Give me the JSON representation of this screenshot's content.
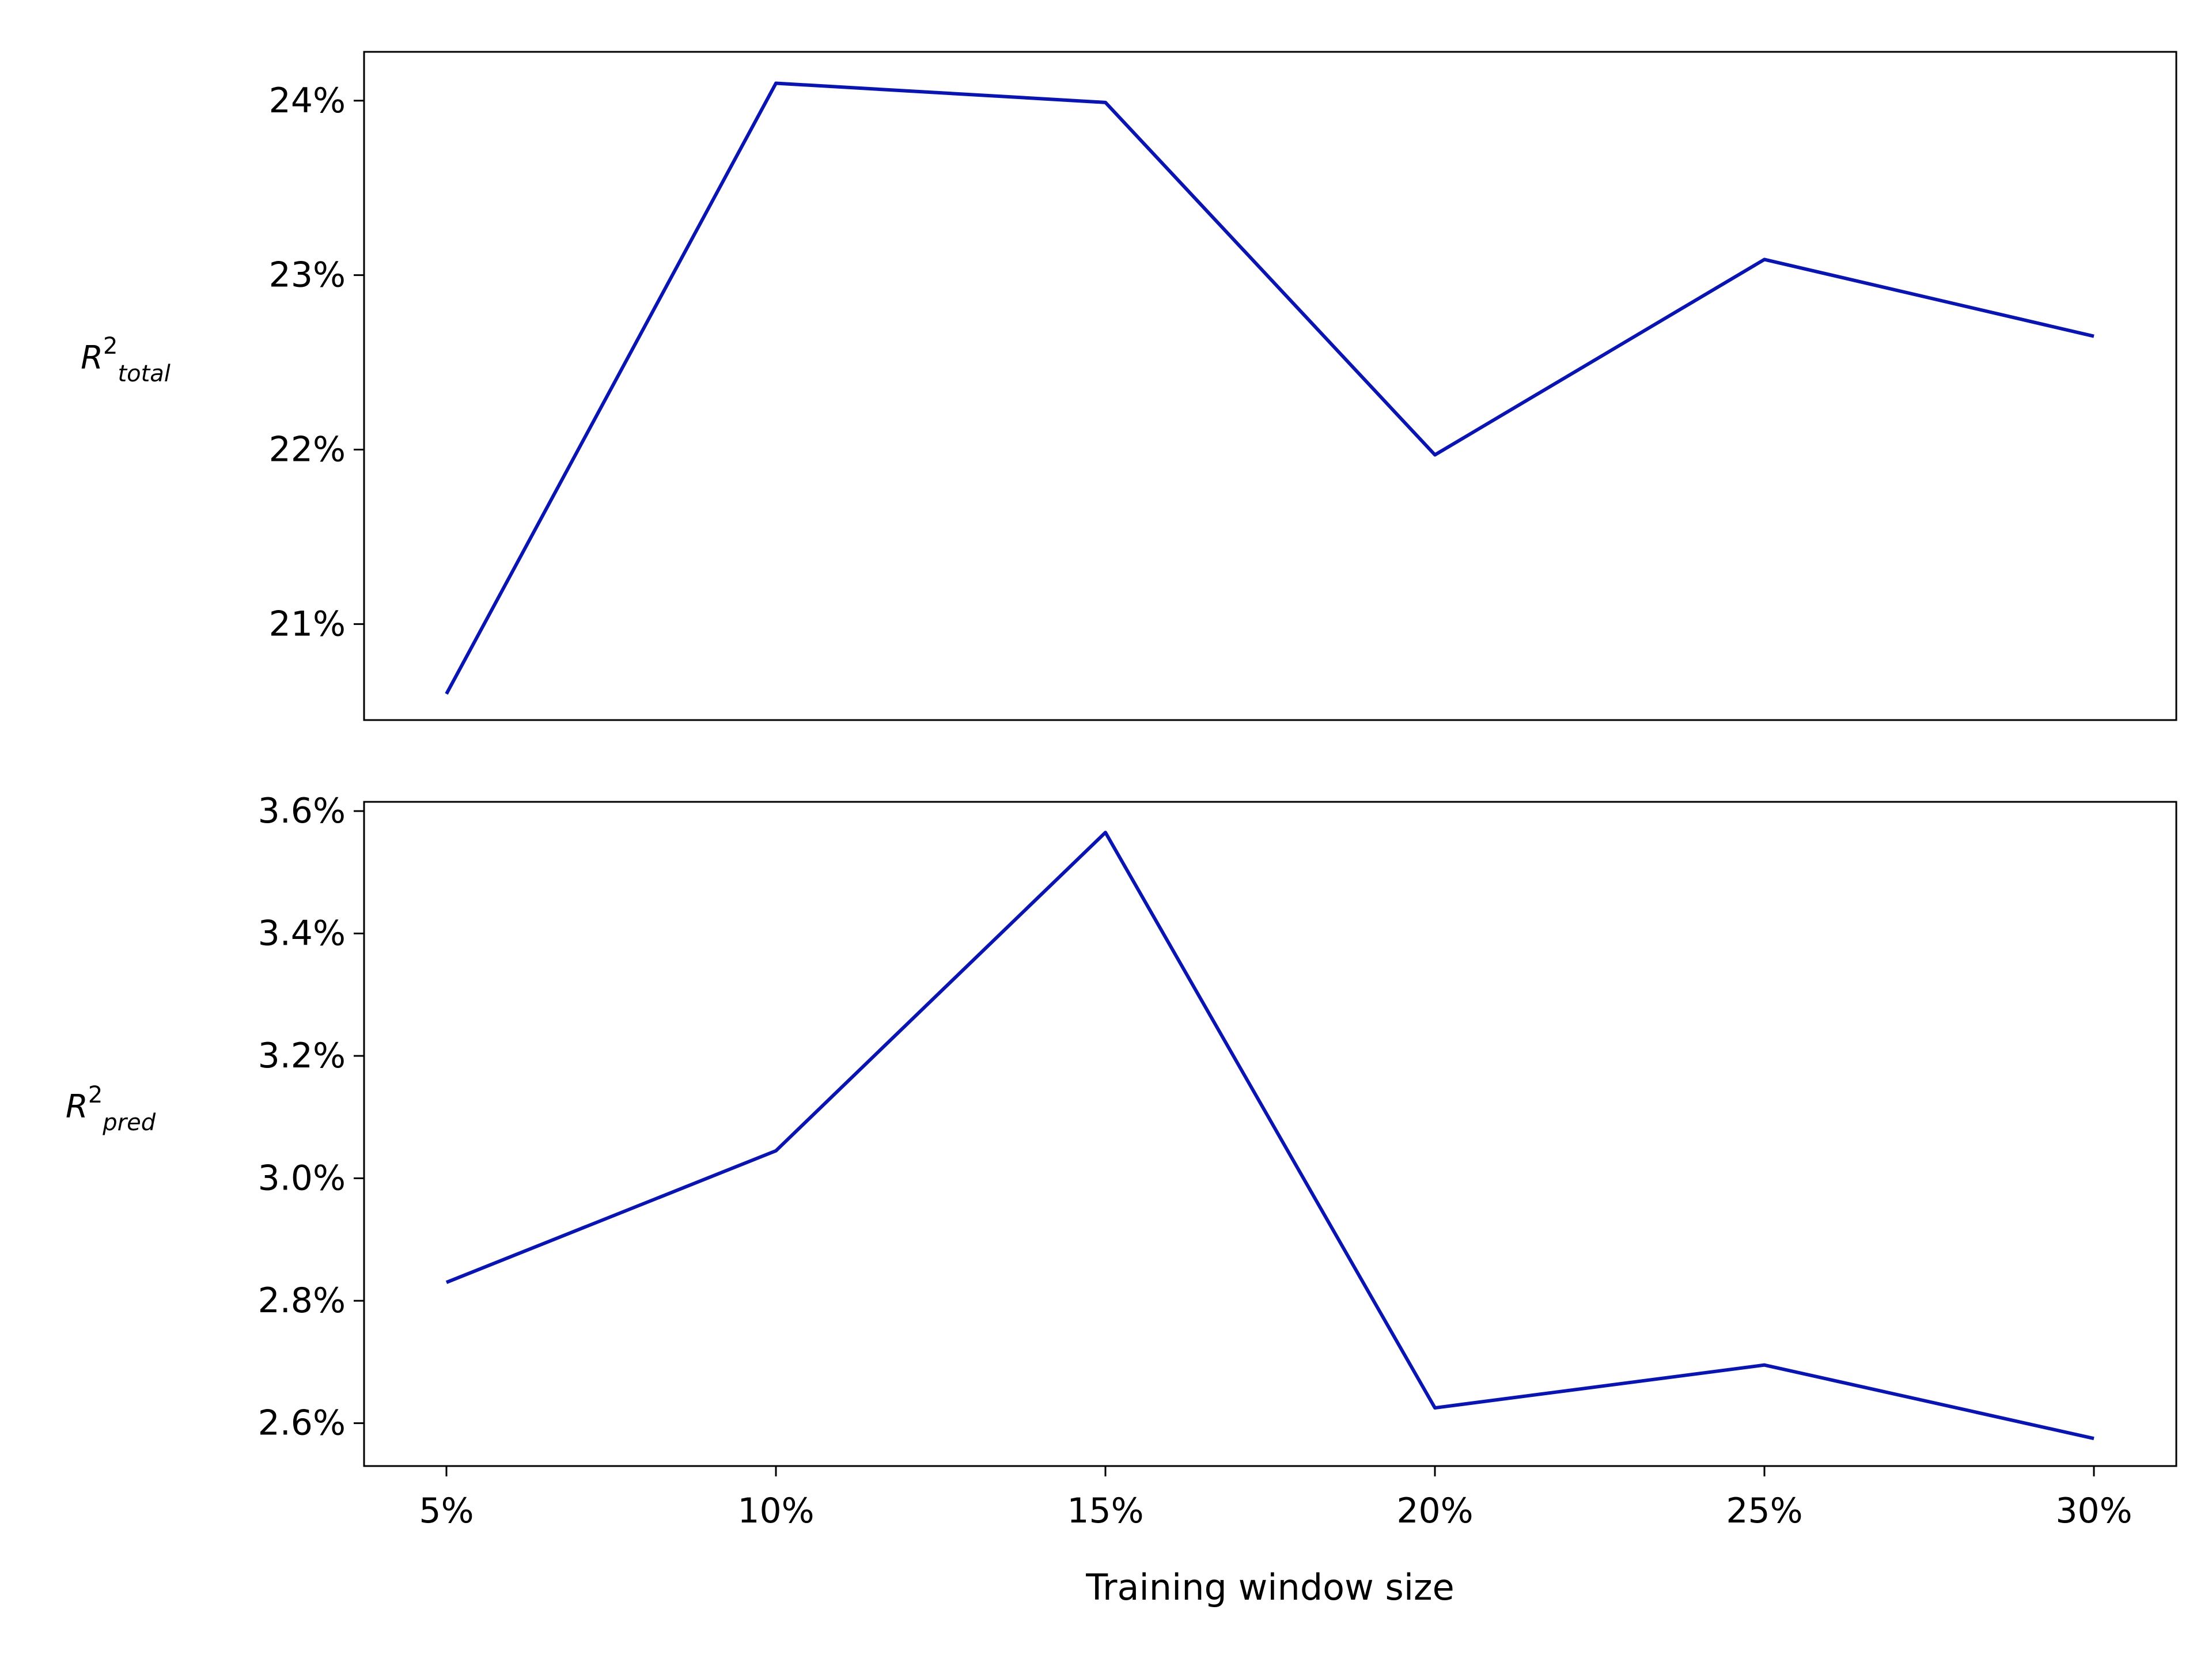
{
  "colors": {
    "line": "#0a14b0",
    "axis": "#000000",
    "background": "#ffffff"
  },
  "chart_data": [
    {
      "type": "line",
      "categories": [
        "5%",
        "10%",
        "15%",
        "20%",
        "25%",
        "30%"
      ],
      "series": [
        {
          "values": [
            20.6,
            24.1,
            23.99,
            21.97,
            23.09,
            22.65
          ]
        }
      ],
      "ylabel": {
        "base": "R",
        "sup": "2",
        "sub": "total"
      },
      "xlabel": "",
      "yticks": [
        "21%",
        "22%",
        "23%",
        "24%"
      ],
      "ytick_values": [
        21,
        22,
        23,
        24
      ],
      "ylim": [
        20.45,
        24.28
      ],
      "show_xticks": false,
      "grid": false
    },
    {
      "type": "line",
      "categories": [
        "5%",
        "10%",
        "15%",
        "20%",
        "25%",
        "30%"
      ],
      "series": [
        {
          "values": [
            2.83,
            3.045,
            3.565,
            2.625,
            2.695,
            2.575
          ]
        }
      ],
      "ylabel": {
        "base": "R",
        "sup": "2",
        "sub": "pred"
      },
      "xlabel": "Training window size",
      "yticks": [
        "2.6%",
        "2.8%",
        "3.0%",
        "3.2%",
        "3.4%",
        "3.6%"
      ],
      "ytick_values": [
        2.6,
        2.8,
        3.0,
        3.2,
        3.4,
        3.6
      ],
      "ylim": [
        2.53,
        3.615
      ],
      "show_xticks": true,
      "grid": false
    }
  ]
}
